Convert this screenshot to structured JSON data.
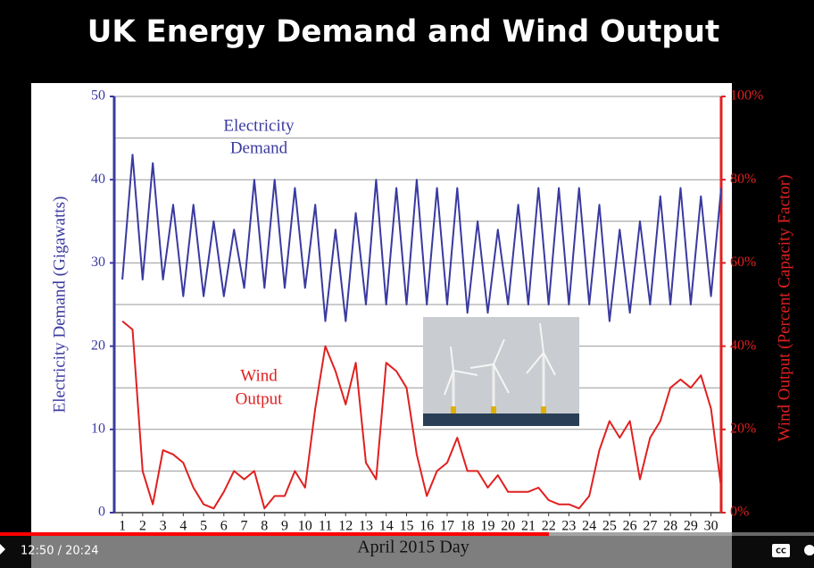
{
  "chart_data": {
    "type": "line",
    "title": "UK Energy Demand and Wind Output",
    "xlabel": "April 2015 Day",
    "ylabel": "Electricity Demand (Gigawatts)",
    "y2label": "Wind Output (Percent Capacity Factor)",
    "annotations": [
      {
        "text": "Electricity",
        "text2": "Demand"
      },
      {
        "text": "Wind",
        "text2": "Output"
      }
    ],
    "x": [
      1,
      1.5,
      2,
      2.5,
      3,
      3.5,
      4,
      4.5,
      5,
      5.5,
      6,
      6.5,
      7,
      7.5,
      8,
      8.5,
      9,
      9.5,
      10,
      10.5,
      11,
      11.5,
      12,
      12.5,
      13,
      13.5,
      14,
      14.5,
      15,
      15.5,
      16,
      16.5,
      17,
      17.5,
      18,
      18.5,
      19,
      19.5,
      20,
      20.5,
      21,
      21.5,
      22,
      22.5,
      23,
      23.5,
      24,
      24.5,
      25,
      25.5,
      26,
      26.5,
      27,
      27.5,
      28,
      28.5,
      29,
      29.5,
      30,
      30.5
    ],
    "series": [
      {
        "name": "Electricity Demand",
        "color": "#3a3aa0",
        "axis": "y",
        "values": [
          28,
          43,
          28,
          42,
          28,
          37,
          26,
          37,
          26,
          35,
          26,
          34,
          27,
          40,
          27,
          40,
          27,
          39,
          27,
          37,
          23,
          34,
          23,
          36,
          25,
          40,
          25,
          39,
          25,
          40,
          25,
          39,
          25,
          39,
          24,
          35,
          24,
          34,
          25,
          37,
          25,
          39,
          25,
          39,
          25,
          39,
          25,
          37,
          23,
          34,
          24,
          35,
          25,
          38,
          25,
          39,
          25,
          38,
          26,
          39
        ]
      },
      {
        "name": "Wind Output",
        "color": "#e02020",
        "axis": "y2",
        "values": [
          46,
          44,
          10,
          2,
          15,
          14,
          12,
          6,
          2,
          1,
          5,
          10,
          8,
          10,
          1,
          4,
          4,
          10,
          6,
          25,
          40,
          34,
          26,
          36,
          12,
          8,
          36,
          34,
          30,
          14,
          4,
          10,
          12,
          18,
          10,
          10,
          6,
          9,
          5,
          5,
          5,
          6,
          3,
          2,
          2,
          1,
          4,
          15,
          22,
          18,
          22,
          8,
          18,
          22,
          30,
          32,
          30,
          33,
          25,
          6
        ]
      }
    ],
    "xlim": [
      0.6,
      30.5
    ],
    "xticks": [
      1,
      2,
      3,
      4,
      5,
      6,
      7,
      8,
      9,
      10,
      11,
      12,
      13,
      14,
      15,
      16,
      17,
      18,
      19,
      20,
      21,
      22,
      23,
      24,
      25,
      26,
      27,
      28,
      29,
      30
    ],
    "ylim": [
      0,
      50
    ],
    "yticks": [
      0,
      10,
      20,
      30,
      40,
      50
    ],
    "minor_yticks": [
      5,
      15,
      25,
      35,
      45
    ],
    "y2lim": [
      0,
      100
    ],
    "y2ticks": [
      {
        "value": 0,
        "label": "0%"
      },
      {
        "value": 20,
        "label": "20%"
      },
      {
        "value": 40,
        "label": "40%"
      },
      {
        "value": 60,
        "label": "60%"
      },
      {
        "value": 80,
        "label": "80%"
      },
      {
        "value": 100,
        "label": "100%"
      }
    ],
    "grid": true
  },
  "player": {
    "time": "12:50 / 20:24",
    "cc": "CC"
  }
}
